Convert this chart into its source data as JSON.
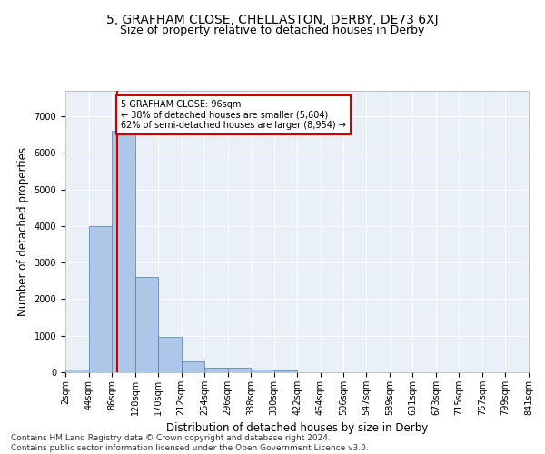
{
  "title": "5, GRAFHAM CLOSE, CHELLASTON, DERBY, DE73 6XJ",
  "subtitle": "Size of property relative to detached houses in Derby",
  "xlabel": "Distribution of detached houses by size in Derby",
  "ylabel": "Number of detached properties",
  "footer_line1": "Contains HM Land Registry data © Crown copyright and database right 2024.",
  "footer_line2": "Contains public sector information licensed under the Open Government Licence v3.0.",
  "annotation_line1": "5 GRAFHAM CLOSE: 96sqm",
  "annotation_line2": "← 38% of detached houses are smaller (5,604)",
  "annotation_line3": "62% of semi-detached houses are larger (8,954) →",
  "property_size": 96,
  "bin_edges": [
    2,
    44,
    86,
    128,
    170,
    212,
    254,
    296,
    338,
    380,
    422,
    464,
    506,
    547,
    589,
    631,
    673,
    715,
    757,
    799,
    841
  ],
  "bar_heights": [
    75,
    4000,
    6600,
    2620,
    960,
    310,
    130,
    115,
    80,
    55,
    0,
    0,
    0,
    0,
    0,
    0,
    0,
    0,
    0,
    0
  ],
  "bar_color": "#aec6e8",
  "bar_edge_color": "#5b8db8",
  "red_line_color": "#cc0000",
  "annotation_box_color": "#cc0000",
  "background_color": "#eaf0f8",
  "grid_color": "#ffffff",
  "ylim": [
    0,
    7700
  ],
  "yticks": [
    0,
    1000,
    2000,
    3000,
    4000,
    5000,
    6000,
    7000
  ],
  "title_fontsize": 10,
  "subtitle_fontsize": 9,
  "axis_label_fontsize": 8.5,
  "tick_fontsize": 7,
  "footer_fontsize": 6.5
}
